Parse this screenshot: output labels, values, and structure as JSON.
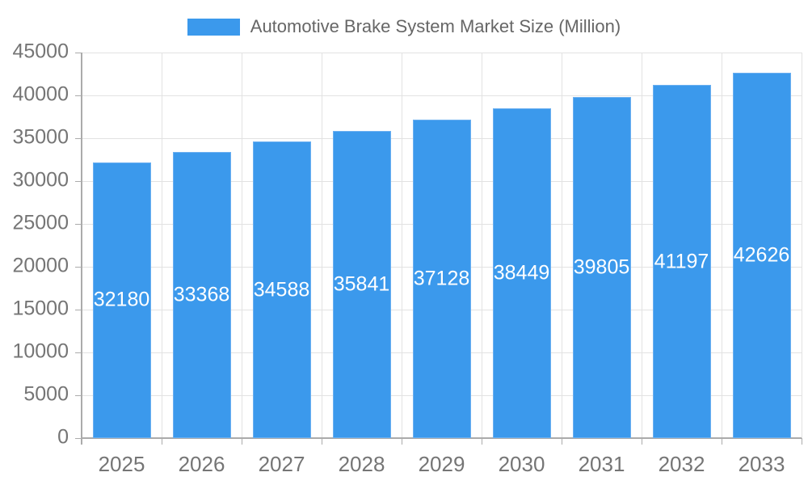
{
  "legend": {
    "label": "Automotive Brake System Market Size (Million)"
  },
  "chart_data": {
    "type": "bar",
    "title": "Automotive Brake System Market Size (Million)",
    "categories": [
      "2025",
      "2026",
      "2027",
      "2028",
      "2029",
      "2030",
      "2031",
      "2032",
      "2033"
    ],
    "series": [
      {
        "name": "Automotive Brake System Market Size (Million)",
        "values": [
          32180,
          33368,
          34588,
          35841,
          37128,
          38449,
          39805,
          41197,
          42626
        ]
      }
    ],
    "xlabel": "",
    "ylabel": "",
    "ylim": [
      0,
      45000
    ],
    "ytick_step": 5000,
    "ytick_labels": [
      "0",
      "5000",
      "10000",
      "15000",
      "20000",
      "25000",
      "30000",
      "35000",
      "40000",
      "45000"
    ],
    "grid": true,
    "bar_value_labels": true,
    "bar_value_label_position": "inside-center",
    "legend_position": "top-center",
    "colors": {
      "bar_fill": "#3B99EC",
      "bar_edge": "#6CB0F1",
      "bar_label": "#FFFFFF",
      "grid_line": "#E2E2E2",
      "axis_line": "#ABABAB",
      "axis_text": "#757575",
      "legend_text": "#666666",
      "background": "#FFFFFF"
    }
  }
}
